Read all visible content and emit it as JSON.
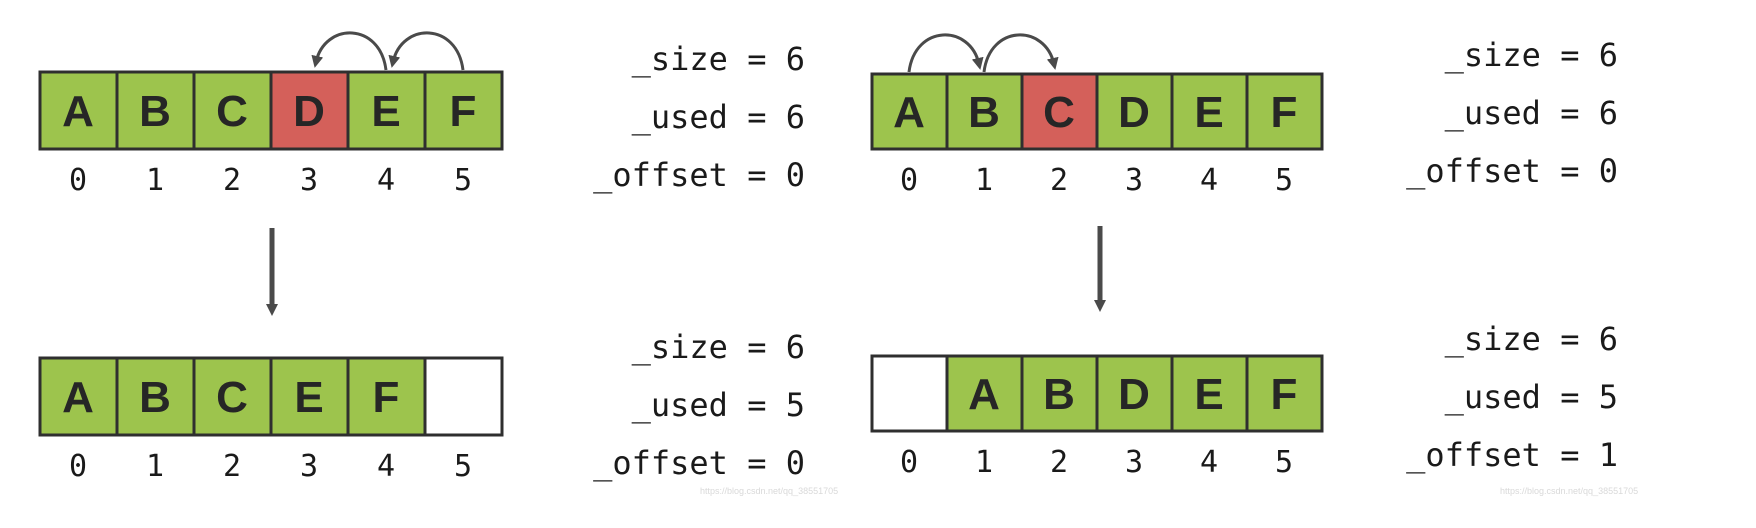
{
  "colors": {
    "filled": "#9dc44d",
    "highlight": "#d4605a",
    "empty": "#ffffff",
    "border": "#2f2f2f",
    "arrow": "#4a4a4a"
  },
  "panels": [
    {
      "before": {
        "cells": [
          "A",
          "B",
          "C",
          "D",
          "E",
          "F"
        ],
        "highlight_index": 3,
        "indices": [
          "0",
          "1",
          "2",
          "3",
          "4",
          "5"
        ],
        "stats": [
          "_size = 6",
          "_used = 6",
          "_offset = 0"
        ]
      },
      "shift_arrows": "E→D, F→E",
      "after": {
        "cells": [
          "A",
          "B",
          "C",
          "E",
          "F",
          ""
        ],
        "indices": [
          "0",
          "1",
          "2",
          "3",
          "4",
          "5"
        ],
        "stats": [
          "_size = 6",
          "_used = 5",
          "_offset = 0"
        ]
      },
      "watermark": "https://blog.csdn.net/qq_38551705"
    },
    {
      "before": {
        "cells": [
          "A",
          "B",
          "C",
          "D",
          "E",
          "F"
        ],
        "highlight_index": 2,
        "indices": [
          "0",
          "1",
          "2",
          "3",
          "4",
          "5"
        ],
        "stats": [
          "_size = 6",
          "_used = 6",
          "_offset = 0"
        ]
      },
      "shift_arrows": "A→B, B→C",
      "after": {
        "cells": [
          "",
          "A",
          "B",
          "D",
          "E",
          "F"
        ],
        "indices": [
          "0",
          "1",
          "2",
          "3",
          "4",
          "5"
        ],
        "stats": [
          "_size = 6",
          "_used = 5",
          "_offset = 1"
        ]
      },
      "watermark": "https://blog.csdn.net/qq_38551705"
    }
  ]
}
